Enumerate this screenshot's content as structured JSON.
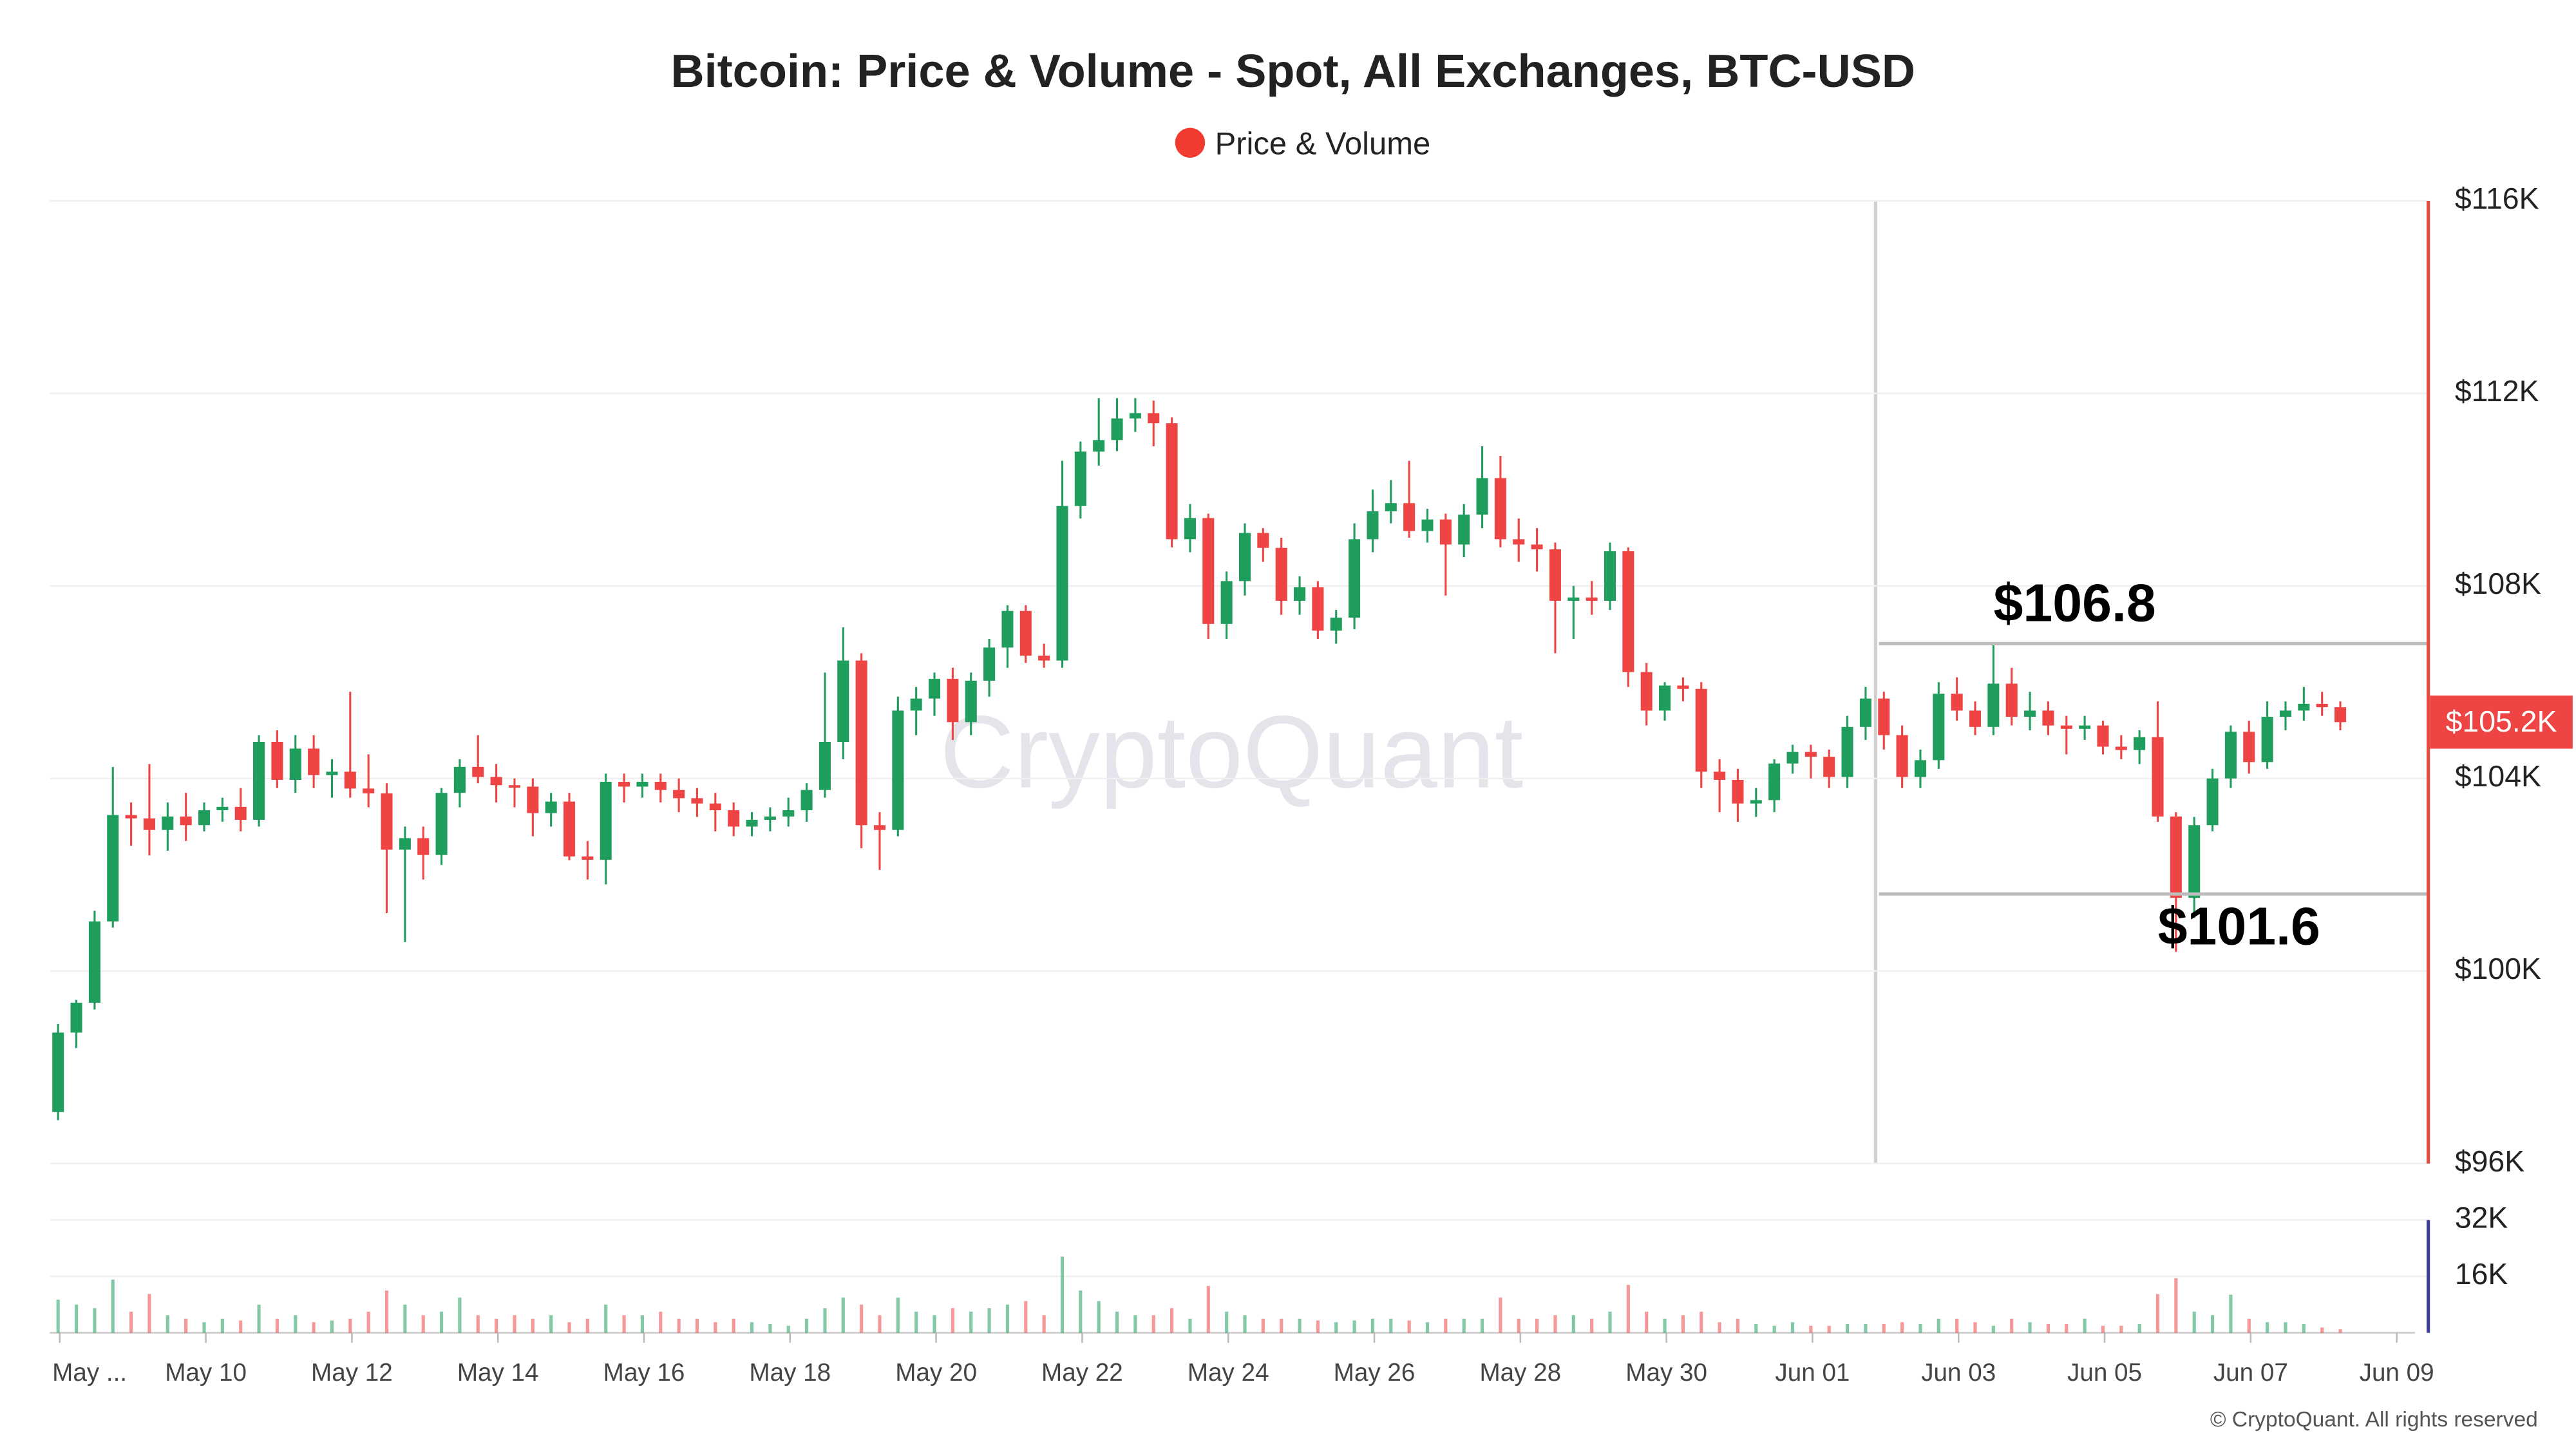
{
  "chart_data": {
    "type": "candlestick",
    "title": "Bitcoin: Price & Volume - Spot, All Exchanges, BTC-USD",
    "legend": "Price & Volume",
    "legend_color": "#f23b30",
    "watermark": "CryptoQuant",
    "credit": "© CryptoQuant. All rights reserved",
    "up_color": "#1f9d5c",
    "down_color": "#ef4444",
    "grid": true,
    "ylim": [
      96000,
      116000
    ],
    "yticks": [
      {
        "value": 96000,
        "label": "$96K"
      },
      {
        "value": 100000,
        "label": "$100K"
      },
      {
        "value": 104000,
        "label": "$104K"
      },
      {
        "value": 108000,
        "label": "$108K"
      },
      {
        "value": 112000,
        "label": "$112K"
      },
      {
        "value": 116000,
        "label": "$116K"
      }
    ],
    "y2lim": [
      0,
      32000
    ],
    "y2ticks": [
      {
        "value": 16000,
        "label": "16K"
      },
      {
        "value": 32000,
        "label": "32K"
      }
    ],
    "xticks": [
      "May ...",
      "May 10",
      "May 12",
      "May 14",
      "May 16",
      "May 18",
      "May 20",
      "May 22",
      "May 24",
      "May 26",
      "May 28",
      "May 30",
      "Jun 01",
      "Jun 03",
      "Jun 05",
      "Jun 07",
      "Jun 09"
    ],
    "annotations": [
      {
        "value": 106800,
        "label": "$106.8"
      },
      {
        "value": 101600,
        "label": "$101.6"
      }
    ],
    "last_price": {
      "value": 105170,
      "label": "$105.2K"
    },
    "ohlc": [
      [
        97070,
        98900,
        96900,
        98720
      ],
      [
        98720,
        99400,
        98400,
        99340
      ],
      [
        99340,
        101250,
        99200,
        101030
      ],
      [
        101030,
        104240,
        100900,
        103240
      ],
      [
        103240,
        103500,
        102600,
        103170
      ],
      [
        103170,
        104300,
        102400,
        102930
      ],
      [
        102930,
        103500,
        102500,
        103210
      ],
      [
        103210,
        103700,
        102700,
        103030
      ],
      [
        103030,
        103500,
        102900,
        103340
      ],
      [
        103340,
        103600,
        103100,
        103410
      ],
      [
        103410,
        103800,
        102900,
        103140
      ],
      [
        103140,
        104900,
        103000,
        104760
      ],
      [
        104760,
        105000,
        103800,
        103970
      ],
      [
        103970,
        104900,
        103700,
        104620
      ],
      [
        104620,
        104900,
        103800,
        104070
      ],
      [
        104070,
        104400,
        103600,
        104140
      ],
      [
        104140,
        105800,
        103600,
        103790
      ],
      [
        103790,
        104500,
        103400,
        103690
      ],
      [
        103690,
        103900,
        101200,
        102520
      ],
      [
        102520,
        103000,
        100600,
        102760
      ],
      [
        102760,
        103000,
        101900,
        102410
      ],
      [
        102410,
        103800,
        102200,
        103700
      ],
      [
        103700,
        104400,
        103400,
        104240
      ],
      [
        104240,
        104900,
        103900,
        104030
      ],
      [
        104030,
        104300,
        103500,
        103860
      ],
      [
        103860,
        104000,
        103400,
        103830
      ],
      [
        103830,
        104000,
        102800,
        103280
      ],
      [
        103280,
        103700,
        103000,
        103520
      ],
      [
        103520,
        103700,
        102300,
        102380
      ],
      [
        102380,
        102700,
        101900,
        102310
      ],
      [
        102310,
        104100,
        101800,
        103930
      ],
      [
        103930,
        104100,
        103500,
        103830
      ],
      [
        103830,
        104100,
        103600,
        103930
      ],
      [
        103930,
        104100,
        103500,
        103760
      ],
      [
        103760,
        104000,
        103300,
        103590
      ],
      [
        103590,
        103800,
        103200,
        103480
      ],
      [
        103480,
        103700,
        102900,
        103340
      ],
      [
        103340,
        103500,
        102800,
        103000
      ],
      [
        103000,
        103300,
        102800,
        103140
      ],
      [
        103140,
        103400,
        102900,
        103210
      ],
      [
        103210,
        103600,
        103000,
        103340
      ],
      [
        103340,
        103900,
        103100,
        103760
      ],
      [
        103760,
        106200,
        103600,
        104760
      ],
      [
        104760,
        107140,
        104400,
        106450
      ],
      [
        106450,
        106600,
        102550,
        103030
      ],
      [
        103030,
        103300,
        102100,
        102930
      ],
      [
        102930,
        105700,
        102800,
        105410
      ],
      [
        105410,
        105900,
        104900,
        105660
      ],
      [
        105660,
        106200,
        105300,
        106070
      ],
      [
        106070,
        106300,
        104800,
        105170
      ],
      [
        105170,
        106200,
        104900,
        106030
      ],
      [
        106030,
        106900,
        105700,
        106720
      ],
      [
        106720,
        107600,
        106300,
        107480
      ],
      [
        107480,
        107600,
        106400,
        106550
      ],
      [
        106550,
        106800,
        106300,
        106450
      ],
      [
        106450,
        110600,
        106300,
        109660
      ],
      [
        109660,
        111000,
        109400,
        110790
      ],
      [
        110790,
        111900,
        110500,
        111030
      ],
      [
        111030,
        111900,
        110800,
        111480
      ],
      [
        111480,
        111900,
        111200,
        111590
      ],
      [
        111590,
        111850,
        110900,
        111380
      ],
      [
        111380,
        111500,
        108800,
        108970
      ],
      [
        108970,
        109700,
        108700,
        109410
      ],
      [
        109410,
        109500,
        106900,
        107210
      ],
      [
        107210,
        108300,
        106900,
        108100
      ],
      [
        108100,
        109300,
        107800,
        109100
      ],
      [
        109100,
        109200,
        108500,
        108790
      ],
      [
        108790,
        109000,
        107400,
        107690
      ],
      [
        107690,
        108200,
        107400,
        107970
      ],
      [
        107970,
        108100,
        106900,
        107070
      ],
      [
        107070,
        107500,
        106800,
        107340
      ],
      [
        107340,
        109300,
        107100,
        108970
      ],
      [
        108970,
        110000,
        108700,
        109550
      ],
      [
        109550,
        110200,
        109300,
        109720
      ],
      [
        109720,
        110600,
        109000,
        109140
      ],
      [
        109140,
        109600,
        108900,
        109380
      ],
      [
        109380,
        109500,
        107800,
        108860
      ],
      [
        108860,
        109700,
        108600,
        109480
      ],
      [
        109480,
        110900,
        109200,
        110240
      ],
      [
        110240,
        110700,
        108800,
        108970
      ],
      [
        108970,
        109400,
        108500,
        108860
      ],
      [
        108860,
        109200,
        108300,
        108760
      ],
      [
        108760,
        108900,
        106600,
        107690
      ],
      [
        107690,
        108000,
        106900,
        107760
      ],
      [
        107760,
        108100,
        107400,
        107690
      ],
      [
        107690,
        108900,
        107500,
        108720
      ],
      [
        108720,
        108800,
        105900,
        106210
      ],
      [
        106210,
        106400,
        105100,
        105410
      ],
      [
        105410,
        106000,
        105200,
        105930
      ],
      [
        105930,
        106100,
        105600,
        105860
      ],
      [
        105860,
        106000,
        103800,
        104140
      ],
      [
        104140,
        104400,
        103300,
        103970
      ],
      [
        103970,
        104200,
        103100,
        103480
      ],
      [
        103480,
        103800,
        103200,
        103550
      ],
      [
        103550,
        104400,
        103300,
        104310
      ],
      [
        104310,
        104700,
        104100,
        104550
      ],
      [
        104550,
        104700,
        104000,
        104450
      ],
      [
        104450,
        104600,
        103800,
        104030
      ],
      [
        104030,
        105300,
        103800,
        105070
      ],
      [
        105070,
        105900,
        104800,
        105660
      ],
      [
        105660,
        105800,
        104600,
        104900
      ],
      [
        104900,
        105100,
        103800,
        104030
      ],
      [
        104030,
        104600,
        103800,
        104380
      ],
      [
        104380,
        106000,
        104200,
        105760
      ],
      [
        105760,
        106100,
        105200,
        105410
      ],
      [
        105410,
        105600,
        104900,
        105070
      ],
      [
        105070,
        106800,
        104900,
        105970
      ],
      [
        105970,
        106300,
        105100,
        105280
      ],
      [
        105280,
        105800,
        105000,
        105410
      ],
      [
        105410,
        105600,
        104900,
        105100
      ],
      [
        105100,
        105300,
        104500,
        105030
      ],
      [
        105030,
        105300,
        104800,
        105100
      ],
      [
        105100,
        105200,
        104500,
        104660
      ],
      [
        104660,
        104900,
        104400,
        104590
      ],
      [
        104590,
        105000,
        104300,
        104860
      ],
      [
        104860,
        105600,
        103100,
        103210
      ],
      [
        103210,
        103300,
        100400,
        101520
      ],
      [
        101520,
        103200,
        101100,
        103030
      ],
      [
        103030,
        104200,
        102900,
        104000
      ],
      [
        104000,
        105100,
        103800,
        104970
      ],
      [
        104970,
        105200,
        104100,
        104340
      ],
      [
        104340,
        105600,
        104200,
        105280
      ],
      [
        105280,
        105600,
        105000,
        105410
      ],
      [
        105410,
        105900,
        105200,
        105550
      ],
      [
        105550,
        105800,
        105300,
        105480
      ],
      [
        105480,
        105600,
        105000,
        105170
      ]
    ],
    "volume": [
      9400,
      8000,
      7000,
      15100,
      6000,
      11000,
      5000,
      4000,
      3000,
      4000,
      3500,
      8000,
      4000,
      5000,
      3000,
      3500,
      4000,
      6000,
      12000,
      8000,
      5000,
      6000,
      10000,
      5000,
      4000,
      5000,
      4000,
      5000,
      3000,
      4000,
      8000,
      5000,
      5000,
      6000,
      4000,
      4000,
      3000,
      4000,
      3000,
      2500,
      2000,
      4000,
      7000,
      10000,
      8000,
      5000,
      10000,
      6000,
      5000,
      7000,
      6000,
      7000,
      8000,
      9000,
      5000,
      21600,
      12000,
      9000,
      6000,
      5000,
      5000,
      7000,
      4000,
      13300,
      6000,
      5000,
      4000,
      4000,
      4000,
      3500,
      3000,
      3500,
      4000,
      4000,
      3500,
      3000,
      4000,
      4000,
      4000,
      10000,
      4000,
      4000,
      5000,
      5000,
      4000,
      6000,
      13600,
      6000,
      4000,
      5000,
      6000,
      3000,
      4000,
      2500,
      2000,
      3000,
      2000,
      2000,
      2500,
      2500,
      2500,
      3000,
      2500,
      4000,
      4000,
      3000,
      2000,
      4000,
      3000,
      2500,
      2500,
      4000,
      2000,
      2000,
      2500,
      11000,
      15500,
      6000,
      5000,
      10800,
      4000,
      3000,
      3000,
      2500,
      1500,
      1000
    ]
  }
}
